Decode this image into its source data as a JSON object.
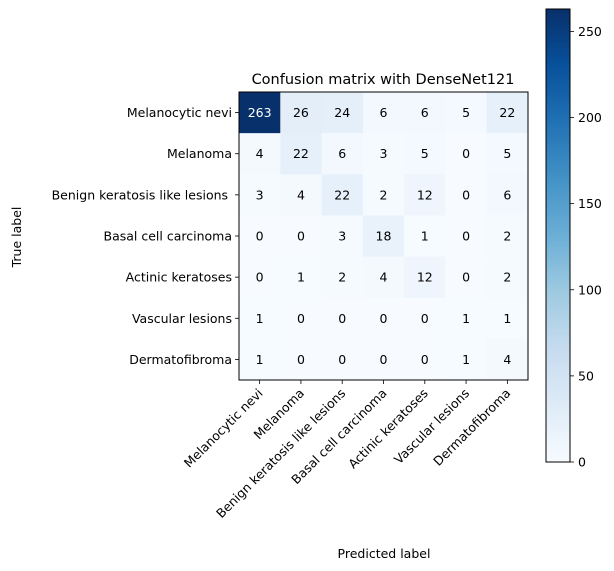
{
  "chart_data": {
    "type": "heatmap",
    "title": "Confusion matrix with DenseNet121",
    "xlabel": "Predicted label",
    "ylabel": "True label",
    "row_labels": [
      "Melanocytic nevi",
      "Melanoma",
      "Benign keratosis like lesions ",
      "Basal cell carcinoma",
      "Actinic keratoses",
      "Vascular lesions",
      "Dermatofibroma"
    ],
    "col_labels": [
      "Melanocytic nevi",
      "Melanoma",
      "Benign keratosis like lesions",
      "Basal cell carcinoma",
      "Actinic keratoses",
      "Vascular lesions",
      "Dermatofibroma"
    ],
    "values": [
      [
        263,
        26,
        24,
        6,
        6,
        5,
        22
      ],
      [
        4,
        22,
        6,
        3,
        5,
        0,
        5
      ],
      [
        3,
        4,
        22,
        2,
        12,
        0,
        6
      ],
      [
        0,
        0,
        3,
        18,
        1,
        0,
        2
      ],
      [
        0,
        1,
        2,
        4,
        12,
        0,
        2
      ],
      [
        1,
        0,
        0,
        0,
        0,
        1,
        1
      ],
      [
        1,
        0,
        0,
        0,
        0,
        1,
        4
      ]
    ],
    "colormap": "Blues",
    "vmin": 0,
    "vmax": 263,
    "colorbar_ticks": [
      "0",
      "50",
      "100",
      "150",
      "200",
      "250"
    ],
    "grid": false
  }
}
